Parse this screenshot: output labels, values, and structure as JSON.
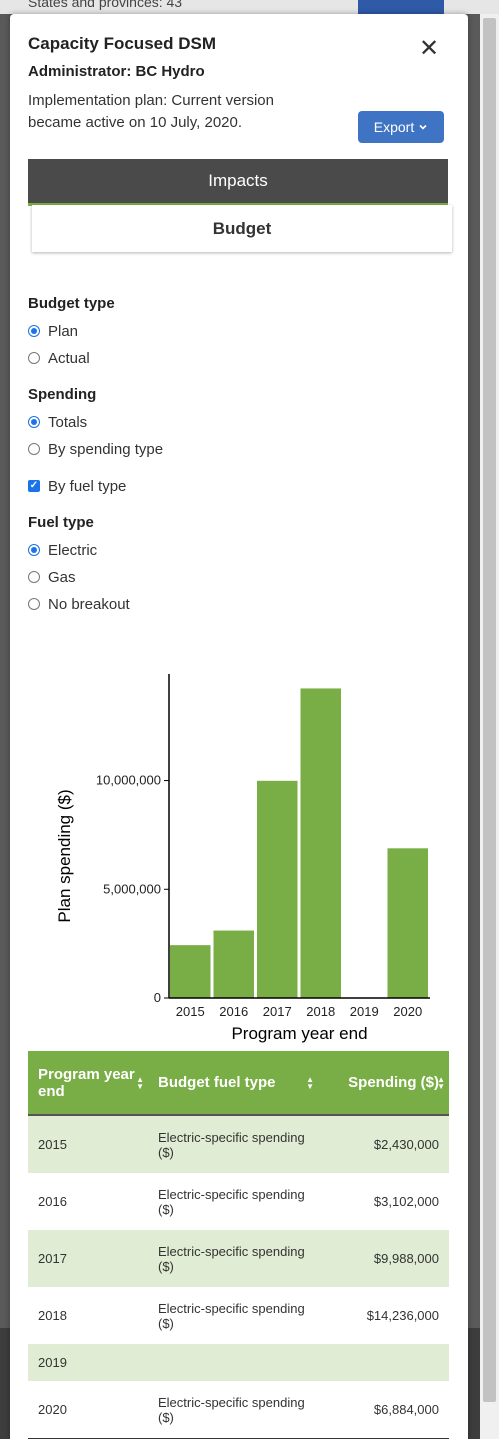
{
  "background": {
    "text": "States and provinces: 43"
  },
  "modal": {
    "title": "Capacity Focused DSM",
    "administrator": "Administrator: BC Hydro",
    "plan_line1": "Implementation plan: Current version",
    "plan_line2": "became active on 10 July, 2020.",
    "export_label": "Export",
    "export_icon": "chevron-down-icon",
    "close_icon": "close-icon",
    "tabs": {
      "impacts": "Impacts",
      "budget": "Budget"
    }
  },
  "filters": {
    "budget_type": {
      "label": "Budget type",
      "options": [
        "Plan",
        "Actual"
      ],
      "selected": "Plan"
    },
    "spending": {
      "label": "Spending",
      "options": [
        "Totals",
        "By spending type"
      ],
      "selected": "Totals"
    },
    "by_fuel_type": {
      "label": "By fuel type",
      "checked": true
    },
    "fuel_type": {
      "label": "Fuel type",
      "options": [
        "Electric",
        "Gas",
        "No breakout"
      ],
      "selected": "Electric"
    }
  },
  "chart_data": {
    "type": "bar",
    "categories": [
      "2015",
      "2016",
      "2017",
      "2018",
      "2019",
      "2020"
    ],
    "values": [
      2430000,
      3102000,
      9988000,
      14236000,
      0,
      6884000
    ],
    "xlabel": "Program year end",
    "ylabel": "Plan spending ($)",
    "yticks": [
      0,
      5000000,
      10000000
    ],
    "ytick_labels": [
      "0",
      "5,000,000",
      "10,000,000"
    ],
    "ylim": [
      0,
      14900000
    ],
    "color": "#79ad46",
    "grid": false
  },
  "table": {
    "headers": [
      "Program year end",
      "Budget fuel type",
      "Spending ($)"
    ],
    "rows": [
      [
        "2015",
        "Electric-specific spending ($)",
        "$2,430,000"
      ],
      [
        "2016",
        "Electric-specific spending ($)",
        "$3,102,000"
      ],
      [
        "2017",
        "Electric-specific spending ($)",
        "$9,988,000"
      ],
      [
        "2018",
        "Electric-specific spending ($)",
        "$14,236,000"
      ],
      [
        "2019",
        "",
        ""
      ],
      [
        "2020",
        "Electric-specific spending ($)",
        "$6,884,000"
      ]
    ]
  },
  "colors": {
    "accent": "#79ad46",
    "primary_button": "#3f74c4",
    "tab_dark": "#4a4a4a",
    "row_stripe": "#e0ecd3"
  }
}
